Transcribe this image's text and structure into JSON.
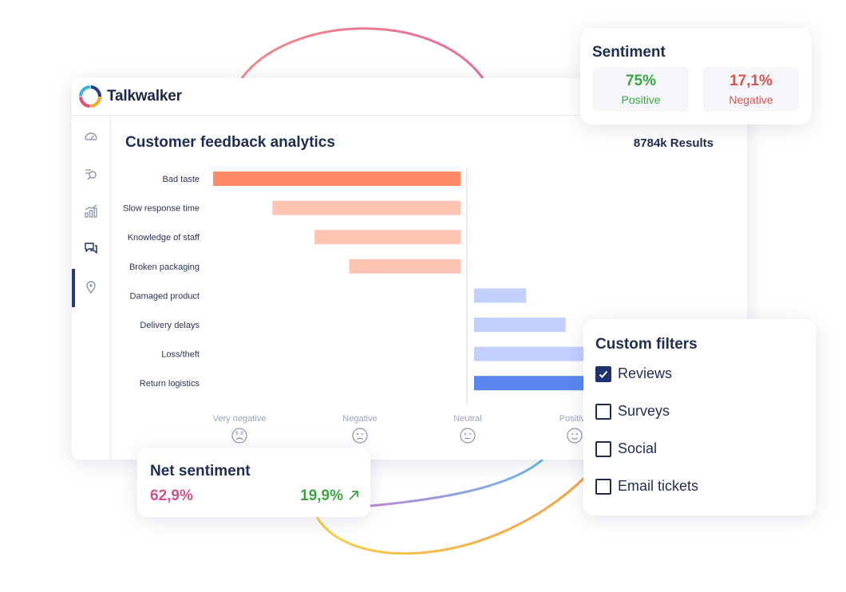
{
  "app": {
    "name": "Talkwalker"
  },
  "sidebar": {
    "items": [
      {
        "icon": "dashboard-icon"
      },
      {
        "icon": "search-list-icon"
      },
      {
        "icon": "analytics-icon"
      },
      {
        "icon": "chat-icon",
        "active": true
      },
      {
        "icon": "location-pin-icon"
      }
    ]
  },
  "main": {
    "title": "Customer feedback analytics",
    "results": "8784k Results"
  },
  "chart_data": {
    "type": "bar",
    "orientation": "horizontal-diverging",
    "categories": [
      "Bad taste",
      "Slow response time",
      "Knowledge of staff",
      "Broken packaging",
      "Damaged product",
      "Delivery delays",
      "Loss/theft",
      "Return logistics"
    ],
    "values": [
      -100,
      -76,
      -59,
      -45,
      21,
      37,
      45,
      45
    ],
    "colors": [
      "#ff8a65",
      "#ffc4b2",
      "#ffc4b2",
      "#ffc4b2",
      "#c3cfff",
      "#c3cfff",
      "#c3cfff",
      "#5b86f0"
    ],
    "x_axis_labels": [
      "Very negative",
      "Negative",
      "Neutral",
      "Positive"
    ],
    "x_axis_icons": [
      "very-sad-face-icon",
      "sad-face-icon",
      "neutral-face-icon",
      "happy-face-icon"
    ]
  },
  "sentiment": {
    "title": "Sentiment",
    "positive": {
      "value": "75%",
      "label": "Positive",
      "color": "#3aa641"
    },
    "negative": {
      "value": "17,1%",
      "label": "Negative",
      "color": "#d9534f"
    }
  },
  "net_sentiment": {
    "title": "Net sentiment",
    "value": "62,9%",
    "change": "19,9%",
    "change_icon": "arrow-up-right-icon"
  },
  "filters": {
    "title": "Custom filters",
    "items": [
      {
        "label": "Reviews",
        "checked": true
      },
      {
        "label": "Surveys",
        "checked": false
      },
      {
        "label": "Social",
        "checked": false
      },
      {
        "label": "Email tickets",
        "checked": false
      }
    ]
  }
}
